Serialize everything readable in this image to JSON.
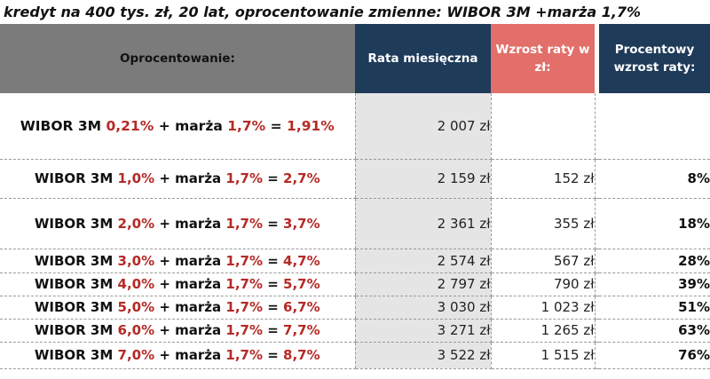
{
  "title": "kredyt na 400 tys. zł, 20 lat, oprocentowanie zmienne: WIBOR 3M +marża 1,7%",
  "headers": {
    "oprocentowanie": "Oprocentowanie:",
    "rata": "Rata miesięczna",
    "wzrost": "Wzrost raty w zł:",
    "procent": "Procentowy wzrost raty:"
  },
  "colors": {
    "header_gray": "#7b7b7b",
    "header_navy": "#1f3b5a",
    "header_coral": "#e26f69",
    "rate_red": "#b52a26",
    "rata_column_bg": "#e5e5e5"
  },
  "rows": [
    {
      "wibor_label": "WIBOR 3M",
      "wibor": "0,21%",
      "plus": "+ marża",
      "marza": "1,7%",
      "eq": "=",
      "total": "1,91%",
      "rata": "2 007 zł",
      "wzrost": "",
      "procent": ""
    },
    {
      "wibor_label": "WIBOR 3M",
      "wibor": "1,0%",
      "plus": "+ marża",
      "marza": "1,7%",
      "eq": "=",
      "total": "2,7%",
      "rata": "2 159 zł",
      "wzrost": "152 zł",
      "procent": "8%"
    },
    {
      "wibor_label": "WIBOR 3M",
      "wibor": "2,0%",
      "plus": "+ marża",
      "marza": "1,7%",
      "eq": "=",
      "total": "3,7%",
      "rata": "2 361 zł",
      "wzrost": "355 zł",
      "procent": "18%"
    },
    {
      "wibor_label": "WIBOR 3M",
      "wibor": "3,0%",
      "plus": "+ marża",
      "marza": "1,7%",
      "eq": "=",
      "total": "4,7%",
      "rata": "2 574 zł",
      "wzrost": "567 zł",
      "procent": "28%"
    },
    {
      "wibor_label": "WIBOR 3M",
      "wibor": "4,0%",
      "plus": "+ marża",
      "marza": "1,7%",
      "eq": "=",
      "total": "5,7%",
      "rata": "2 797 zł",
      "wzrost": "790 zł",
      "procent": "39%"
    },
    {
      "wibor_label": "WIBOR 3M",
      "wibor": "5,0%",
      "plus": "+ marża",
      "marza": "1,7%",
      "eq": "=",
      "total": "6,7%",
      "rata": "3 030 zł",
      "wzrost": "1 023 zł",
      "procent": "51%"
    },
    {
      "wibor_label": "WIBOR 3M",
      "wibor": "6,0%",
      "plus": "+ marża",
      "marza": "1,7%",
      "eq": "=",
      "total": "7,7%",
      "rata": "3 271 zł",
      "wzrost": "1 265 zł",
      "procent": "63%"
    },
    {
      "wibor_label": "WIBOR 3M",
      "wibor": "7,0%",
      "plus": "+ marża",
      "marza": "1,7%",
      "eq": "=",
      "total": "8,7%",
      "rata": "3 522 zł",
      "wzrost": "1 515 zł",
      "procent": "76%"
    }
  ]
}
